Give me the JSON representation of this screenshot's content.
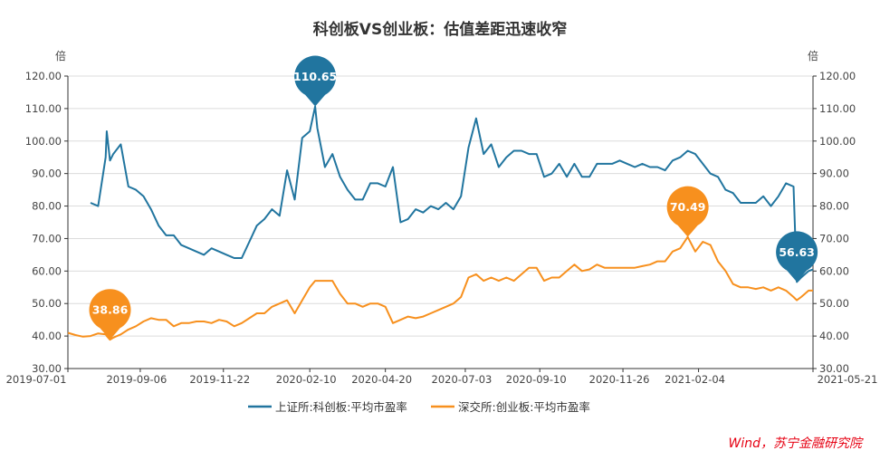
{
  "chart_data": {
    "type": "line",
    "title": "科创板VS创业板：估值差距迅速收窄",
    "ylabel_left": "倍",
    "ylabel_right": "倍",
    "ylim": [
      30,
      120
    ],
    "yticks": [
      "30.00",
      "40.00",
      "50.00",
      "60.00",
      "70.00",
      "80.00",
      "90.00",
      "100.00",
      "110.00",
      "120.00"
    ],
    "xlim": [
      "2019-07-01",
      "2021-05-21"
    ],
    "xticks": [
      "2019-07-01",
      "2019-09-06",
      "2019-11-22",
      "2020-02-10",
      "2020-04-20",
      "2020-07-03",
      "2020-09-10",
      "2020-11-26",
      "2021-02-04",
      "2021-05-21"
    ],
    "grid": "horizontal",
    "legend_position": "bottom",
    "colors": {
      "blue": "#21759f",
      "orange": "#f7901e",
      "source": "#e60012"
    },
    "x": [
      "2019-07-01",
      "2019-07-08",
      "2019-07-15",
      "2019-07-22",
      "2019-07-29",
      "2019-08-05",
      "2019-08-06",
      "2019-08-09",
      "2019-08-12",
      "2019-08-19",
      "2019-08-26",
      "2019-09-02",
      "2019-09-09",
      "2019-09-16",
      "2019-09-23",
      "2019-09-30",
      "2019-10-07",
      "2019-10-14",
      "2019-10-21",
      "2019-10-28",
      "2019-11-04",
      "2019-11-11",
      "2019-11-18",
      "2019-11-25",
      "2019-12-02",
      "2019-12-09",
      "2019-12-16",
      "2019-12-23",
      "2019-12-30",
      "2020-01-06",
      "2020-01-13",
      "2020-01-20",
      "2020-01-27",
      "2020-02-03",
      "2020-02-10",
      "2020-02-15",
      "2020-02-17",
      "2020-02-24",
      "2020-03-02",
      "2020-03-09",
      "2020-03-16",
      "2020-03-23",
      "2020-03-30",
      "2020-04-06",
      "2020-04-13",
      "2020-04-20",
      "2020-04-27",
      "2020-05-04",
      "2020-05-11",
      "2020-05-18",
      "2020-05-25",
      "2020-06-01",
      "2020-06-08",
      "2020-06-15",
      "2020-06-22",
      "2020-06-29",
      "2020-07-06",
      "2020-07-13",
      "2020-07-20",
      "2020-07-27",
      "2020-08-03",
      "2020-08-10",
      "2020-08-17",
      "2020-08-24",
      "2020-08-31",
      "2020-09-07",
      "2020-09-14",
      "2020-09-21",
      "2020-09-28",
      "2020-10-05",
      "2020-10-12",
      "2020-10-19",
      "2020-10-26",
      "2020-11-02",
      "2020-11-09",
      "2020-11-16",
      "2020-11-23",
      "2020-11-30",
      "2020-12-07",
      "2020-12-14",
      "2020-12-21",
      "2020-12-28",
      "2021-01-04",
      "2021-01-11",
      "2021-01-18",
      "2021-01-25",
      "2021-02-01",
      "2021-02-08",
      "2021-02-15",
      "2021-02-22",
      "2021-03-01",
      "2021-03-08",
      "2021-03-15",
      "2021-03-22",
      "2021-03-29",
      "2021-04-05",
      "2021-04-12",
      "2021-04-19",
      "2021-04-26",
      "2021-05-03",
      "2021-05-06",
      "2021-05-10",
      "2021-05-17",
      "2021-05-21"
    ],
    "series": [
      {
        "name": "上证所:科创板:平均市盈率",
        "color": "#21759f",
        "values": [
          null,
          null,
          null,
          81,
          80,
          95,
          103,
          94,
          96,
          99,
          86,
          85,
          83,
          79,
          74,
          71,
          71,
          68,
          67,
          66,
          65,
          67,
          66,
          65,
          64,
          64,
          69,
          74,
          76,
          79,
          77,
          91,
          82,
          101,
          103,
          110.65,
          104,
          92,
          96,
          89,
          85,
          82,
          82,
          87,
          87,
          86,
          92,
          75,
          76,
          79,
          78,
          80,
          79,
          81,
          79,
          83,
          98,
          107,
          96,
          99,
          92,
          95,
          97,
          97,
          96,
          96,
          89,
          90,
          93,
          89,
          93,
          89,
          89,
          93,
          93,
          93,
          94,
          93,
          92,
          93,
          92,
          92,
          91,
          94,
          95,
          97,
          96,
          93,
          90,
          89,
          85,
          84,
          81,
          81,
          81,
          83,
          80,
          83,
          87,
          86,
          56.63,
          58,
          60,
          60.5
        ]
      },
      {
        "name": "深交所:创业板:平均市盈率",
        "color": "#f7901e",
        "values": [
          41,
          40.3,
          39.8,
          40,
          40.8,
          40.5,
          40,
          38.86,
          39.5,
          40.5,
          42,
          43,
          44.5,
          45.5,
          45,
          45,
          43,
          44,
          44,
          44.5,
          44.5,
          44,
          45,
          44.5,
          43,
          44,
          45.5,
          47,
          47,
          49,
          50,
          51,
          47,
          51,
          55,
          57,
          57,
          57,
          57,
          53,
          50,
          50,
          49,
          50,
          50,
          49,
          44,
          45,
          46,
          45.5,
          46,
          47,
          48,
          49,
          50,
          52,
          58,
          59,
          57,
          58,
          57,
          58,
          57,
          59,
          61,
          61,
          57,
          58,
          58,
          60,
          62,
          60,
          60.5,
          62,
          61,
          61,
          61,
          61,
          61,
          61.5,
          62,
          63,
          63,
          66,
          67,
          70.49,
          66,
          69,
          68,
          63,
          60,
          56,
          55,
          55,
          54.5,
          55,
          54,
          55,
          54,
          52,
          51,
          52,
          54,
          54
        ]
      }
    ],
    "annotations": [
      {
        "series": 0,
        "date": "2020-02-15",
        "label": "110.65"
      },
      {
        "series": 0,
        "date": "2021-05-06",
        "label": "56.63"
      },
      {
        "series": 1,
        "date": "2019-08-09",
        "label": "38.86"
      },
      {
        "series": 1,
        "date": "2021-01-25",
        "label": "70.49"
      }
    ],
    "source": "Wind，苏宁金融研究院"
  }
}
